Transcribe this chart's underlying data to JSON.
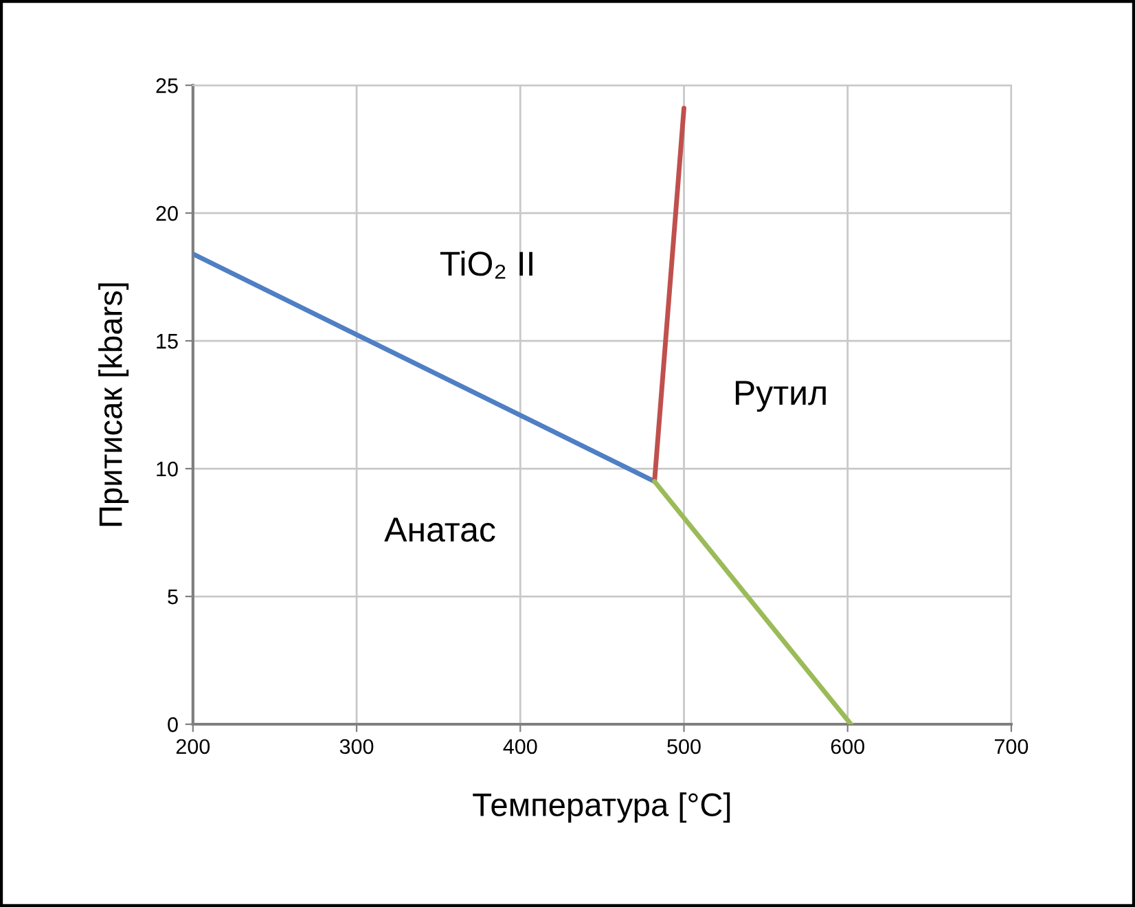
{
  "chart_data": {
    "type": "line",
    "xlabel": "Температура [°C]",
    "ylabel": "Притисак [kbars]",
    "series": [
      {
        "color": "#4f7fc4",
        "x": [
          200,
          482
        ],
        "values": [
          18.4,
          9.5
        ]
      },
      {
        "color": "#c0504d",
        "x": [
          482,
          500
        ],
        "values": [
          9.5,
          24.1
        ]
      },
      {
        "color": "#9bbb59",
        "x": [
          482,
          602
        ],
        "values": [
          9.5,
          0
        ]
      }
    ],
    "xlim": [
      200,
      700
    ],
    "xticks": [
      200,
      300,
      400,
      500,
      600,
      700
    ],
    "ylim": [
      0,
      25
    ],
    "yticks": [
      0,
      5,
      10,
      15,
      20,
      25
    ],
    "grid": true,
    "marker": "none",
    "line_style": "solid",
    "annotations": [
      "TiO₂ II",
      "Рутил",
      "Анатас"
    ]
  }
}
